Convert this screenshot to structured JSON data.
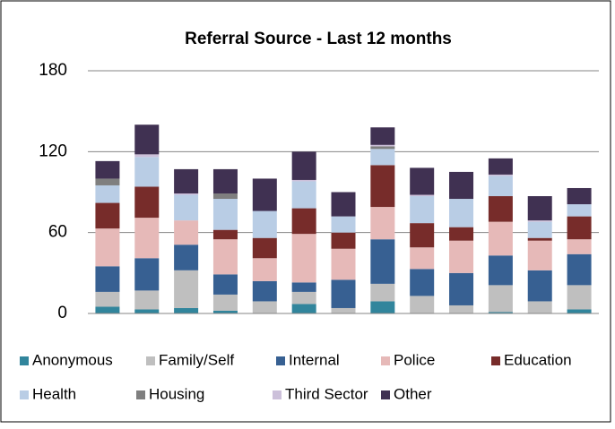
{
  "chart_data": {
    "type": "stacked-bar",
    "title": "Referral Source - Last 12 months",
    "categories": [
      null,
      null,
      null,
      null,
      null,
      null,
      null,
      null,
      null,
      null,
      null,
      null,
      null
    ],
    "ylim": [
      0,
      180
    ],
    "yticks": [
      0,
      60,
      120,
      180
    ],
    "grid": true,
    "legend": "bottom",
    "series": [
      {
        "name": "Anonymous",
        "color": "#31859c",
        "values": [
          5,
          3,
          4,
          2,
          0,
          7,
          0,
          9,
          0,
          0,
          1,
          0,
          3
        ]
      },
      {
        "name": "Family/Self",
        "color": "#bfbfbf",
        "values": [
          11,
          14,
          28,
          12,
          9,
          9,
          4,
          13,
          13,
          6,
          20,
          9,
          18
        ]
      },
      {
        "name": "Internal",
        "color": "#376092",
        "values": [
          19,
          24,
          19,
          15,
          15,
          7,
          21,
          33,
          20,
          24,
          22,
          23,
          23
        ]
      },
      {
        "name": "Police",
        "color": "#e6b9b8",
        "values": [
          28,
          30,
          18,
          26,
          17,
          36,
          23,
          24,
          16,
          24,
          25,
          22,
          11
        ]
      },
      {
        "name": "Education",
        "color": "#772c2a",
        "values": [
          19,
          23,
          0,
          7,
          15,
          19,
          12,
          31,
          18,
          10,
          19,
          2,
          17
        ]
      },
      {
        "name": "Health",
        "color": "#b9cde5",
        "values": [
          13,
          22,
          19,
          23,
          20,
          20,
          12,
          12,
          20,
          21,
          15,
          12,
          9
        ]
      },
      {
        "name": "Housing",
        "color": "#7f7f7f",
        "values": [
          5,
          0,
          0,
          4,
          0,
          0,
          0,
          2,
          0,
          0,
          0,
          0,
          0
        ]
      },
      {
        "name": "Third Sector",
        "color": "#ccc0da",
        "values": [
          0,
          2,
          1,
          0,
          0,
          1,
          0,
          1,
          1,
          0,
          1,
          1,
          0
        ]
      },
      {
        "name": "Other",
        "color": "#403152",
        "values": [
          13,
          22,
          18,
          18,
          24,
          21,
          18,
          13,
          20,
          20,
          12,
          18,
          12
        ]
      }
    ]
  }
}
